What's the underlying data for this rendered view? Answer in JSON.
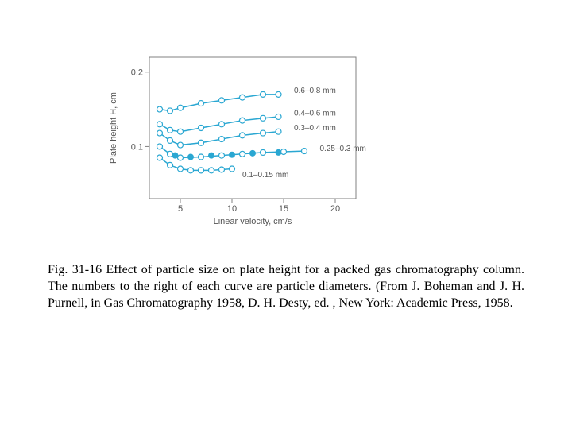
{
  "chart": {
    "type": "line",
    "background_color": "#ffffff",
    "axis_color": "#808080",
    "line_color": "#2aa7d2",
    "marker_stroke": "#2aa7d2",
    "marker_fill_open": "#ffffff",
    "marker_fill_solid": "#2aa7d2",
    "line_width": 1.5,
    "marker_radius": 3.5,
    "xlabel": "Linear velocity, cm/s",
    "ylabel": "Plate height H, cm",
    "label_fontsize": 11,
    "tick_fontsize": 11,
    "series_label_fontsize": 10,
    "xlim": [
      2,
      22
    ],
    "ylim": [
      0.03,
      0.22
    ],
    "xticks": [
      5,
      10,
      15,
      20
    ],
    "yticks": [
      0.1,
      0.2
    ],
    "series": [
      {
        "label": "0.6–0.8 mm",
        "label_x": 16.0,
        "label_y": 0.175,
        "open_points": [
          [
            3,
            0.15
          ],
          [
            4,
            0.148
          ],
          [
            5,
            0.152
          ],
          [
            7,
            0.158
          ],
          [
            9,
            0.162
          ],
          [
            11,
            0.166
          ],
          [
            13,
            0.17
          ],
          [
            14.5,
            0.17
          ]
        ],
        "solid_points": []
      },
      {
        "label": "0.4–0.6 mm",
        "label_x": 16.0,
        "label_y": 0.145,
        "open_points": [
          [
            3,
            0.13
          ],
          [
            4,
            0.122
          ],
          [
            5,
            0.12
          ],
          [
            7,
            0.125
          ],
          [
            9,
            0.13
          ],
          [
            11,
            0.135
          ],
          [
            13,
            0.138
          ],
          [
            14.5,
            0.14
          ]
        ],
        "solid_points": []
      },
      {
        "label": "0.3–0.4 mm",
        "label_x": 16.0,
        "label_y": 0.125,
        "open_points": [
          [
            3,
            0.118
          ],
          [
            4,
            0.108
          ],
          [
            5,
            0.102
          ],
          [
            7,
            0.105
          ],
          [
            9,
            0.11
          ],
          [
            11,
            0.115
          ],
          [
            13,
            0.118
          ],
          [
            14.5,
            0.12
          ]
        ],
        "solid_points": []
      },
      {
        "label": "0.25–0.3 mm",
        "label_x": 18.5,
        "label_y": 0.097,
        "open_points": [
          [
            3,
            0.1
          ],
          [
            4,
            0.09
          ],
          [
            5,
            0.085
          ],
          [
            7,
            0.086
          ],
          [
            9,
            0.088
          ],
          [
            11,
            0.09
          ],
          [
            13,
            0.092
          ],
          [
            15,
            0.093
          ],
          [
            17,
            0.094
          ]
        ],
        "solid_points": [
          [
            4.5,
            0.088
          ],
          [
            6,
            0.086
          ],
          [
            8,
            0.088
          ],
          [
            10,
            0.089
          ],
          [
            12,
            0.091
          ],
          [
            14.5,
            0.092
          ]
        ]
      },
      {
        "label": "0.1–0.15 mm",
        "label_x": 11.0,
        "label_y": 0.062,
        "open_points": [
          [
            3,
            0.085
          ],
          [
            4,
            0.075
          ],
          [
            5,
            0.07
          ],
          [
            6,
            0.068
          ],
          [
            7,
            0.068
          ],
          [
            8,
            0.068
          ],
          [
            9,
            0.069
          ],
          [
            10,
            0.07
          ]
        ],
        "solid_points": []
      }
    ]
  },
  "caption": {
    "text": "Fig. 31-16 Effect of particle size on plate height for a packed gas chromatography column. The numbers to the right of each curve are particle diameters. (From J. Boheman and J. H. Purnell, in Gas Chromatography 1958, D. H. Desty, ed. , New York: Academic Press, 1958.",
    "fontsize": 16
  }
}
